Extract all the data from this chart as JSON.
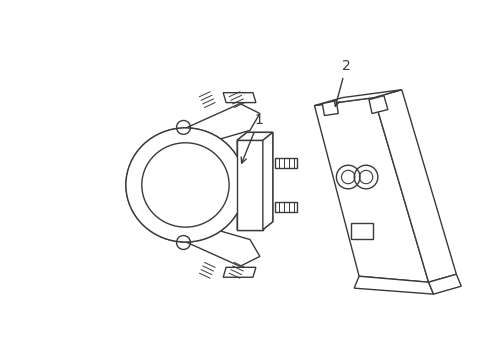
{
  "background_color": "#ffffff",
  "line_color": "#3a3a3a",
  "line_width": 1.0,
  "label_1": "1",
  "label_2": "2",
  "label_fontsize": 10,
  "figsize": [
    4.89,
    3.6
  ],
  "dpi": 100
}
